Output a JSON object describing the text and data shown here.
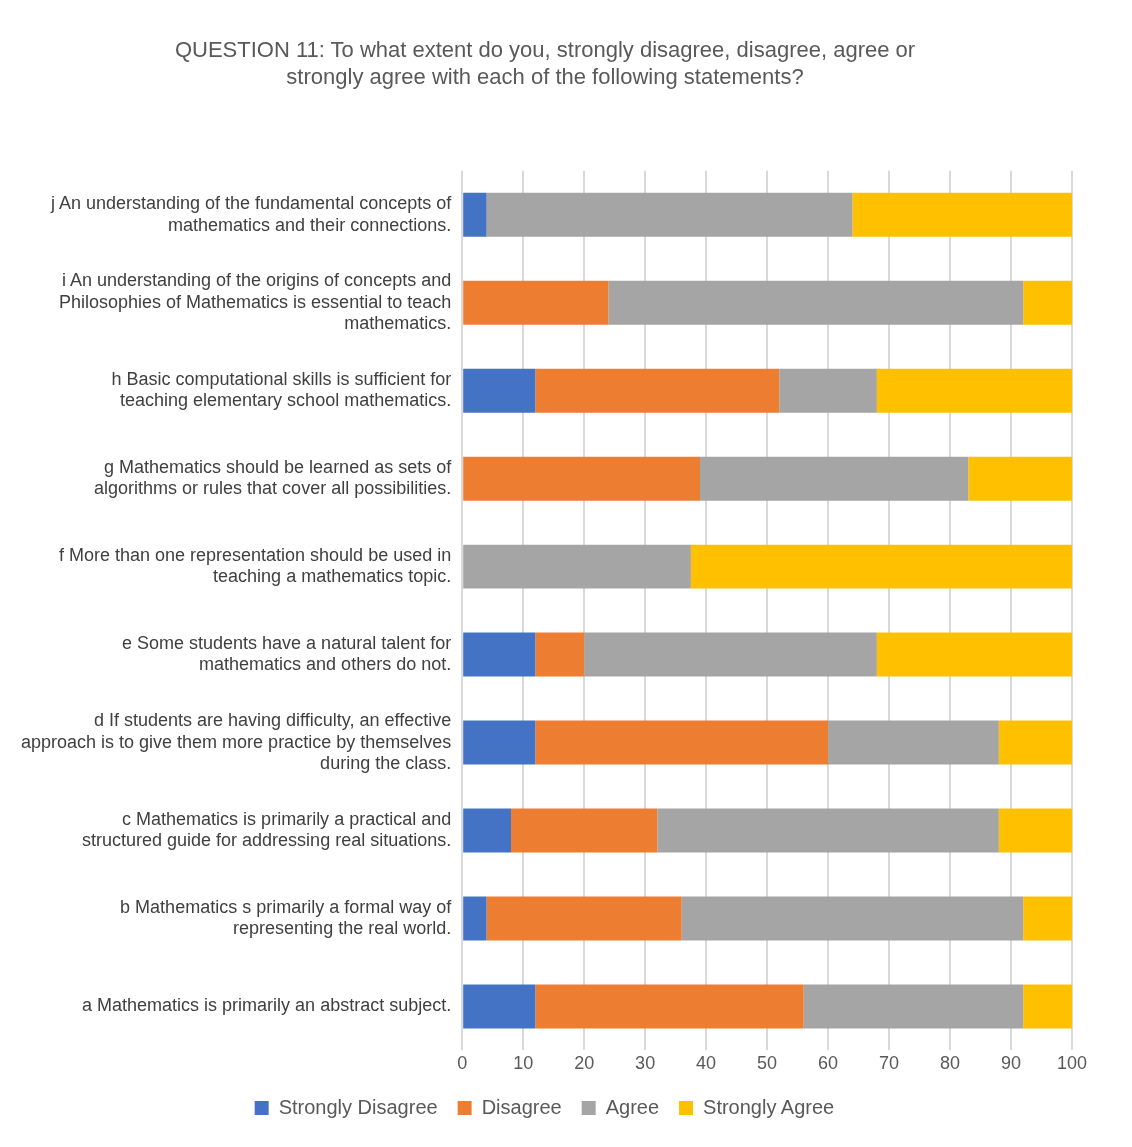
{
  "chart_data": {
    "type": "bar",
    "orientation": "horizontal",
    "stacked": true,
    "title": "QUESTION 11: To what extent do you, strongly disagree, disagree, agree or strongly agree with each of the following statements?",
    "categories": [
      "j An understanding of the fundamental concepts of mathematics and their connections.",
      "i An understanding of the origins of concepts and Philosophies of Mathematics is essential to teach mathematics.",
      "h Basic computational skills is sufficient for teaching elementary school mathematics.",
      "g Mathematics should be learned as sets of algorithms or rules that cover all possibilities.",
      "f More than one representation should be used in teaching a mathematics topic.",
      "e Some students have a natural talent for mathematics and others do not.",
      "d If students are having difficulty, an effective approach is to give them more practice by themselves during the class.",
      "c Mathematics is primarily a practical and structured guide for addressing real situations.",
      "b Mathematics s primarily a formal way of representing the real world.",
      "a Mathematics is primarily an abstract subject."
    ],
    "series": [
      {
        "name": "Strongly Disagree",
        "color": "#4472c4",
        "values": [
          4,
          0,
          12,
          0,
          0,
          12,
          12,
          8,
          4,
          12
        ]
      },
      {
        "name": "Disagree",
        "color": "#ed7d31",
        "values": [
          0,
          24,
          40,
          39,
          0,
          8,
          48,
          24,
          32,
          44
        ]
      },
      {
        "name": "Agree",
        "color": "#a5a5a5",
        "values": [
          60,
          68,
          16,
          44,
          37.5,
          48,
          28,
          56,
          56,
          36
        ]
      },
      {
        "name": "Strongly Agree",
        "color": "#ffc000",
        "values": [
          36,
          8,
          32,
          17,
          62.5,
          32,
          12,
          12,
          8,
          8
        ]
      }
    ],
    "xlim": [
      0,
      100
    ],
    "xticks": [
      0,
      10,
      20,
      30,
      40,
      50,
      60,
      70,
      80,
      90,
      100
    ],
    "grid": "x",
    "legend": "bottom"
  }
}
